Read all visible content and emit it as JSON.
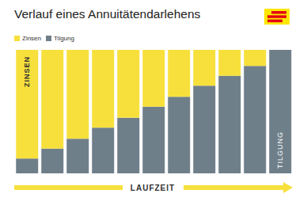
{
  "chart_data": {
    "type": "bar",
    "title": "Verlauf eines Annuitätendarlehens",
    "categories": [
      null,
      null,
      null,
      null,
      null,
      null,
      null,
      null,
      null,
      null,
      null
    ],
    "series": [
      {
        "name": "Zinsen",
        "color": "#f7e03c",
        "values": [
          88,
          80,
          72,
          63,
          55,
          46,
          38,
          29,
          21,
          13,
          0
        ]
      },
      {
        "name": "Tilgung",
        "color": "#6f7f8a",
        "values": [
          12,
          20,
          28,
          37,
          45,
          54,
          62,
          71,
          79,
          87,
          100
        ]
      }
    ],
    "stacked": true,
    "ylim": [
      0,
      100
    ],
    "tick_labels": false,
    "x_label": "LAUFZEIT",
    "annotations": [
      "ZINSEN",
      "TILGUNG"
    ]
  }
}
